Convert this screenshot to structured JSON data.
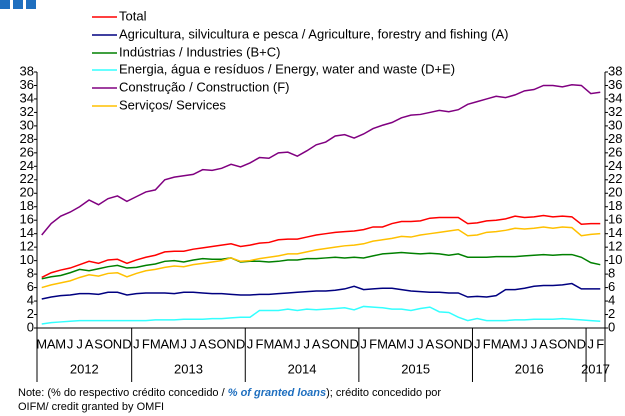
{
  "chart_data": {
    "type": "line",
    "categories": [
      "M",
      "A",
      "M",
      "J",
      "J",
      "A",
      "S",
      "O",
      "N",
      "D",
      "J",
      "F",
      "M",
      "A",
      "M",
      "J",
      "J",
      "A",
      "S",
      "O",
      "N",
      "D",
      "J",
      "F",
      "M",
      "A",
      "M",
      "J",
      "J",
      "A",
      "S",
      "O",
      "N",
      "D",
      "J",
      "F",
      "M",
      "A",
      "M",
      "J",
      "J",
      "A",
      "S",
      "O",
      "N",
      "D",
      "J",
      "F",
      "M",
      "A",
      "M",
      "J",
      "J",
      "A",
      "S",
      "O",
      "N",
      "D",
      "J",
      "F"
    ],
    "year_labels": [
      "2012",
      "2013",
      "2014",
      "2015",
      "2016",
      "2017"
    ],
    "ylim": [
      0,
      38
    ],
    "yticks": [
      0,
      2,
      4,
      6,
      8,
      10,
      12,
      14,
      16,
      18,
      20,
      22,
      24,
      26,
      28,
      30,
      32,
      34,
      36,
      38
    ],
    "series": [
      {
        "name": "Total",
        "color": "#ff0000",
        "values": [
          7.5,
          8.2,
          8.6,
          8.9,
          9.4,
          9.9,
          9.6,
          10.1,
          10.2,
          9.6,
          10.1,
          10.5,
          10.8,
          11.3,
          11.4,
          11.4,
          11.7,
          11.9,
          12.1,
          12.3,
          12.5,
          12.1,
          12.3,
          12.6,
          12.7,
          13.1,
          13.2,
          13.2,
          13.5,
          13.8,
          14,
          14.2,
          14.3,
          14.4,
          14.6,
          15,
          15,
          15.5,
          15.8,
          15.8,
          15.9,
          16.3,
          16.4,
          16.4,
          16.4,
          15.5,
          15.6,
          15.9,
          16,
          16.2,
          16.6,
          16.4,
          16.5,
          16.7,
          16.5,
          16.6,
          16.5,
          15.4,
          15.5,
          15.5
        ]
      },
      {
        "name": "Agricultura, silvicultura e pesca / Agriculture, forestry and fishing (A)",
        "color": "#000080",
        "values": [
          4.3,
          4.6,
          4.8,
          4.9,
          5.1,
          5.1,
          5.0,
          5.3,
          5.3,
          4.9,
          5.1,
          5.2,
          5.2,
          5.2,
          5.1,
          5.3,
          5.3,
          5.2,
          5.1,
          5.1,
          5.0,
          4.9,
          4.9,
          5.0,
          5.0,
          5.1,
          5.2,
          5.3,
          5.4,
          5.5,
          5.5,
          5.6,
          5.8,
          6.2,
          5.7,
          5.8,
          5.9,
          5.9,
          5.7,
          5.5,
          5.4,
          5.3,
          5.3,
          5.2,
          5.2,
          4.6,
          4.7,
          4.6,
          4.8,
          5.7,
          5.7,
          5.9,
          6.2,
          6.3,
          6.3,
          6.4,
          6.6,
          5.8,
          5.8,
          5.8
        ]
      },
      {
        "name": "Indústrias / Industries (B+C)",
        "color": "#008000",
        "values": [
          7.3,
          7.6,
          7.8,
          8.2,
          8.7,
          8.5,
          8.8,
          9.1,
          9.3,
          8.9,
          9.0,
          9.3,
          9.5,
          9.9,
          10,
          9.8,
          10.1,
          10.3,
          10.2,
          10.2,
          10.4,
          9.8,
          9.9,
          9.9,
          9.8,
          9.9,
          10.1,
          10.1,
          10.3,
          10.3,
          10.4,
          10.5,
          10.4,
          10.5,
          10.4,
          10.7,
          11,
          11.1,
          11.2,
          11.1,
          11,
          11.1,
          11,
          10.8,
          11,
          10.5,
          10.5,
          10.5,
          10.6,
          10.6,
          10.6,
          10.7,
          10.8,
          10.9,
          10.8,
          10.9,
          10.9,
          10.5,
          9.7,
          9.4
        ]
      },
      {
        "name": "Energia, água e resíduos / Energy, water and waste (D+E)",
        "color": "#33ffff",
        "values": [
          0.6,
          0.8,
          0.9,
          1,
          1.1,
          1.1,
          1.1,
          1.1,
          1.1,
          1.1,
          1.1,
          1.1,
          1.2,
          1.2,
          1.2,
          1.3,
          1.3,
          1.3,
          1.4,
          1.4,
          1.5,
          1.6,
          1.6,
          2.6,
          2.6,
          2.6,
          2.8,
          2.6,
          2.8,
          2.7,
          2.8,
          2.9,
          3,
          2.7,
          3.2,
          3.1,
          3,
          2.8,
          2.8,
          2.6,
          2.9,
          3.1,
          2.4,
          2.3,
          1.6,
          1.1,
          1.4,
          1.1,
          1.1,
          1.1,
          1.2,
          1.2,
          1.3,
          1.3,
          1.3,
          1.4,
          1.3,
          1.2,
          1.1,
          1.0
        ]
      },
      {
        "name": "Construção / Construction  (F)",
        "color": "#800080",
        "values": [
          13.8,
          15.5,
          16.6,
          17.2,
          18,
          19,
          18.3,
          19.2,
          19.6,
          18.8,
          19.5,
          20.2,
          20.5,
          22,
          22.4,
          22.6,
          22.8,
          23.5,
          23.4,
          23.7,
          24.3,
          23.9,
          24.5,
          25.3,
          25.2,
          26,
          26.1,
          25.5,
          26.3,
          27.2,
          27.6,
          28.5,
          28.7,
          28.2,
          28.8,
          29.6,
          30.1,
          30.5,
          31.2,
          31.6,
          31.7,
          32,
          32.3,
          32.1,
          32.4,
          33.2,
          33.6,
          34,
          34.4,
          34.2,
          34.6,
          35.2,
          35.4,
          36,
          36,
          35.8,
          36.1,
          36,
          34.8,
          35
        ]
      },
      {
        "name": "Serviços/ Services",
        "color": "#ffc000",
        "values": [
          6,
          6.4,
          6.7,
          7,
          7.5,
          7.9,
          7.7,
          8.1,
          8.2,
          7.6,
          8.1,
          8.5,
          8.7,
          9,
          9.2,
          9.1,
          9.4,
          9.6,
          9.8,
          10,
          10.4,
          9.9,
          10,
          10.3,
          10.5,
          10.7,
          11,
          11,
          11.3,
          11.6,
          11.8,
          12,
          12.2,
          12.3,
          12.5,
          12.9,
          13.1,
          13.3,
          13.6,
          13.5,
          13.8,
          14,
          14.2,
          14.4,
          14.6,
          13.7,
          13.8,
          14.2,
          14.3,
          14.5,
          14.8,
          14.7,
          14.8,
          15,
          14.8,
          15,
          14.9,
          13.7,
          13.9,
          14
        ]
      }
    ],
    "note": [
      "Note: (% do respectivo crédito concedido / ",
      "% of granted loans",
      "); crédito concedido por",
      "OIFM/ credit granted by OMFI"
    ]
  }
}
